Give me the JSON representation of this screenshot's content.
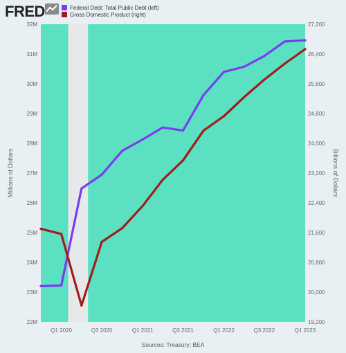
{
  "header": {
    "logo_text": "FRED",
    "legend": [
      {
        "label": "Federal Debt: Total Public Debt (left)",
        "color": "#7b3cf0"
      },
      {
        "label": "Gross Domestic Product (right)",
        "color": "#a31b1b"
      }
    ]
  },
  "footer": {
    "sources": "Sources: Treasury; BEA"
  },
  "colors": {
    "plot_background": "#5be0c2",
    "recession_shading": "#e6e9ea",
    "page_background": "#e9f0f4"
  },
  "chart_data": {
    "type": "line",
    "x": [
      "2019-10-01",
      "2020-01-01",
      "2020-04-01",
      "2020-07-01",
      "2020-10-01",
      "2021-01-01",
      "2021-04-01",
      "2021-07-01",
      "2021-10-01",
      "2022-01-01",
      "2022-04-01",
      "2022-07-01",
      "2022-10-01",
      "2023-01-01"
    ],
    "x_ticks": [
      {
        "date": "2020-01-01",
        "label": "Q1 2020"
      },
      {
        "date": "2020-07-01",
        "label": "Q3 2020"
      },
      {
        "date": "2021-01-01",
        "label": "Q1 2021"
      },
      {
        "date": "2021-07-01",
        "label": "Q3 2021"
      },
      {
        "date": "2022-01-01",
        "label": "Q1 2022"
      },
      {
        "date": "2022-07-01",
        "label": "Q3 2022"
      },
      {
        "date": "2023-01-01",
        "label": "Q1 2023"
      }
    ],
    "recession": {
      "start": "2020-02-01",
      "end": "2020-04-30"
    },
    "series": [
      {
        "name": "Federal Debt: Total Public Debt (left)",
        "axis": "left",
        "color": "#7b3cf0",
        "values": [
          23.2,
          23.22,
          26.48,
          26.95,
          27.75,
          28.13,
          28.53,
          28.43,
          29.62,
          30.4,
          30.57,
          30.93,
          31.42,
          31.46
        ]
      },
      {
        "name": "Gross Domestic Product (right)",
        "axis": "right",
        "color": "#a31b1b",
        "values": [
          21700,
          21560,
          19640,
          21350,
          21720,
          22320,
          23020,
          23540,
          24340,
          24730,
          25240,
          25710,
          26140,
          26530
        ]
      }
    ],
    "y_left": {
      "label": "Millions of Dollars",
      "min": 22,
      "max": 32,
      "ticks": [
        {
          "v": 22,
          "label": "22M"
        },
        {
          "v": 23,
          "label": "23M"
        },
        {
          "v": 24,
          "label": "24M"
        },
        {
          "v": 25,
          "label": "25M"
        },
        {
          "v": 26,
          "label": "26M"
        },
        {
          "v": 27,
          "label": "27M"
        },
        {
          "v": 28,
          "label": "28M"
        },
        {
          "v": 29,
          "label": "29M"
        },
        {
          "v": 30,
          "label": "30M"
        },
        {
          "v": 31,
          "label": "31M"
        },
        {
          "v": 32,
          "label": "32M"
        }
      ]
    },
    "y_right": {
      "label": "Billions of Dollars",
      "min": 19200,
      "max": 27200,
      "ticks": [
        {
          "v": 19200,
          "label": "19,200"
        },
        {
          "v": 20000,
          "label": "20,000"
        },
        {
          "v": 20800,
          "label": "20,800"
        },
        {
          "v": 21600,
          "label": "21,600"
        },
        {
          "v": 22400,
          "label": "22,400"
        },
        {
          "v": 23200,
          "label": "23,200"
        },
        {
          "v": 24000,
          "label": "24,000"
        },
        {
          "v": 24800,
          "label": "24,800"
        },
        {
          "v": 25600,
          "label": "25,600"
        },
        {
          "v": 26400,
          "label": "26,400"
        },
        {
          "v": 27200,
          "label": "27,200"
        }
      ]
    },
    "grid": false,
    "legend_position": "top-left"
  }
}
